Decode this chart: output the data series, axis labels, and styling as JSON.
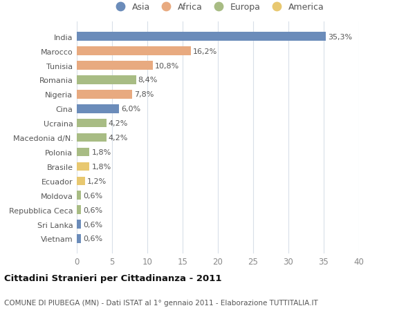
{
  "categories": [
    "Vietnam",
    "Sri Lanka",
    "Repubblica Ceca",
    "Moldova",
    "Ecuador",
    "Brasile",
    "Polonia",
    "Macedonia d/N.",
    "Ucraina",
    "Cina",
    "Nigeria",
    "Romania",
    "Tunisia",
    "Marocco",
    "India"
  ],
  "values": [
    0.6,
    0.6,
    0.6,
    0.6,
    1.2,
    1.8,
    1.8,
    4.2,
    4.2,
    6.0,
    7.8,
    8.4,
    10.8,
    16.2,
    35.3
  ],
  "labels": [
    "0,6%",
    "0,6%",
    "0,6%",
    "0,6%",
    "1,2%",
    "1,8%",
    "1,8%",
    "4,2%",
    "4,2%",
    "6,0%",
    "7,8%",
    "8,4%",
    "10,8%",
    "16,2%",
    "35,3%"
  ],
  "colors": [
    "#6b8cba",
    "#6b8cba",
    "#a8bc84",
    "#a8bc84",
    "#e8c870",
    "#e8c870",
    "#a8bc84",
    "#a8bc84",
    "#a8bc84",
    "#6b8cba",
    "#e8aa80",
    "#a8bc84",
    "#e8aa80",
    "#e8aa80",
    "#6b8cba"
  ],
  "continent_colors": {
    "Asia": "#6b8cba",
    "Africa": "#e8aa80",
    "Europa": "#a8bc84",
    "America": "#e8c870"
  },
  "xlim": [
    0,
    40
  ],
  "xticks": [
    0,
    5,
    10,
    15,
    20,
    25,
    30,
    35,
    40
  ],
  "title": "Cittadini Stranieri per Cittadinanza - 2011",
  "subtitle": "COMUNE DI PIUBEGA (MN) - Dati ISTAT al 1° gennaio 2011 - Elaborazione TUTTITALIA.IT",
  "bg_color": "#ffffff",
  "grid_color": "#d8dfe8",
  "bar_height": 0.6,
  "label_fontsize": 8.0,
  "ytick_fontsize": 8.0,
  "xtick_fontsize": 8.5
}
